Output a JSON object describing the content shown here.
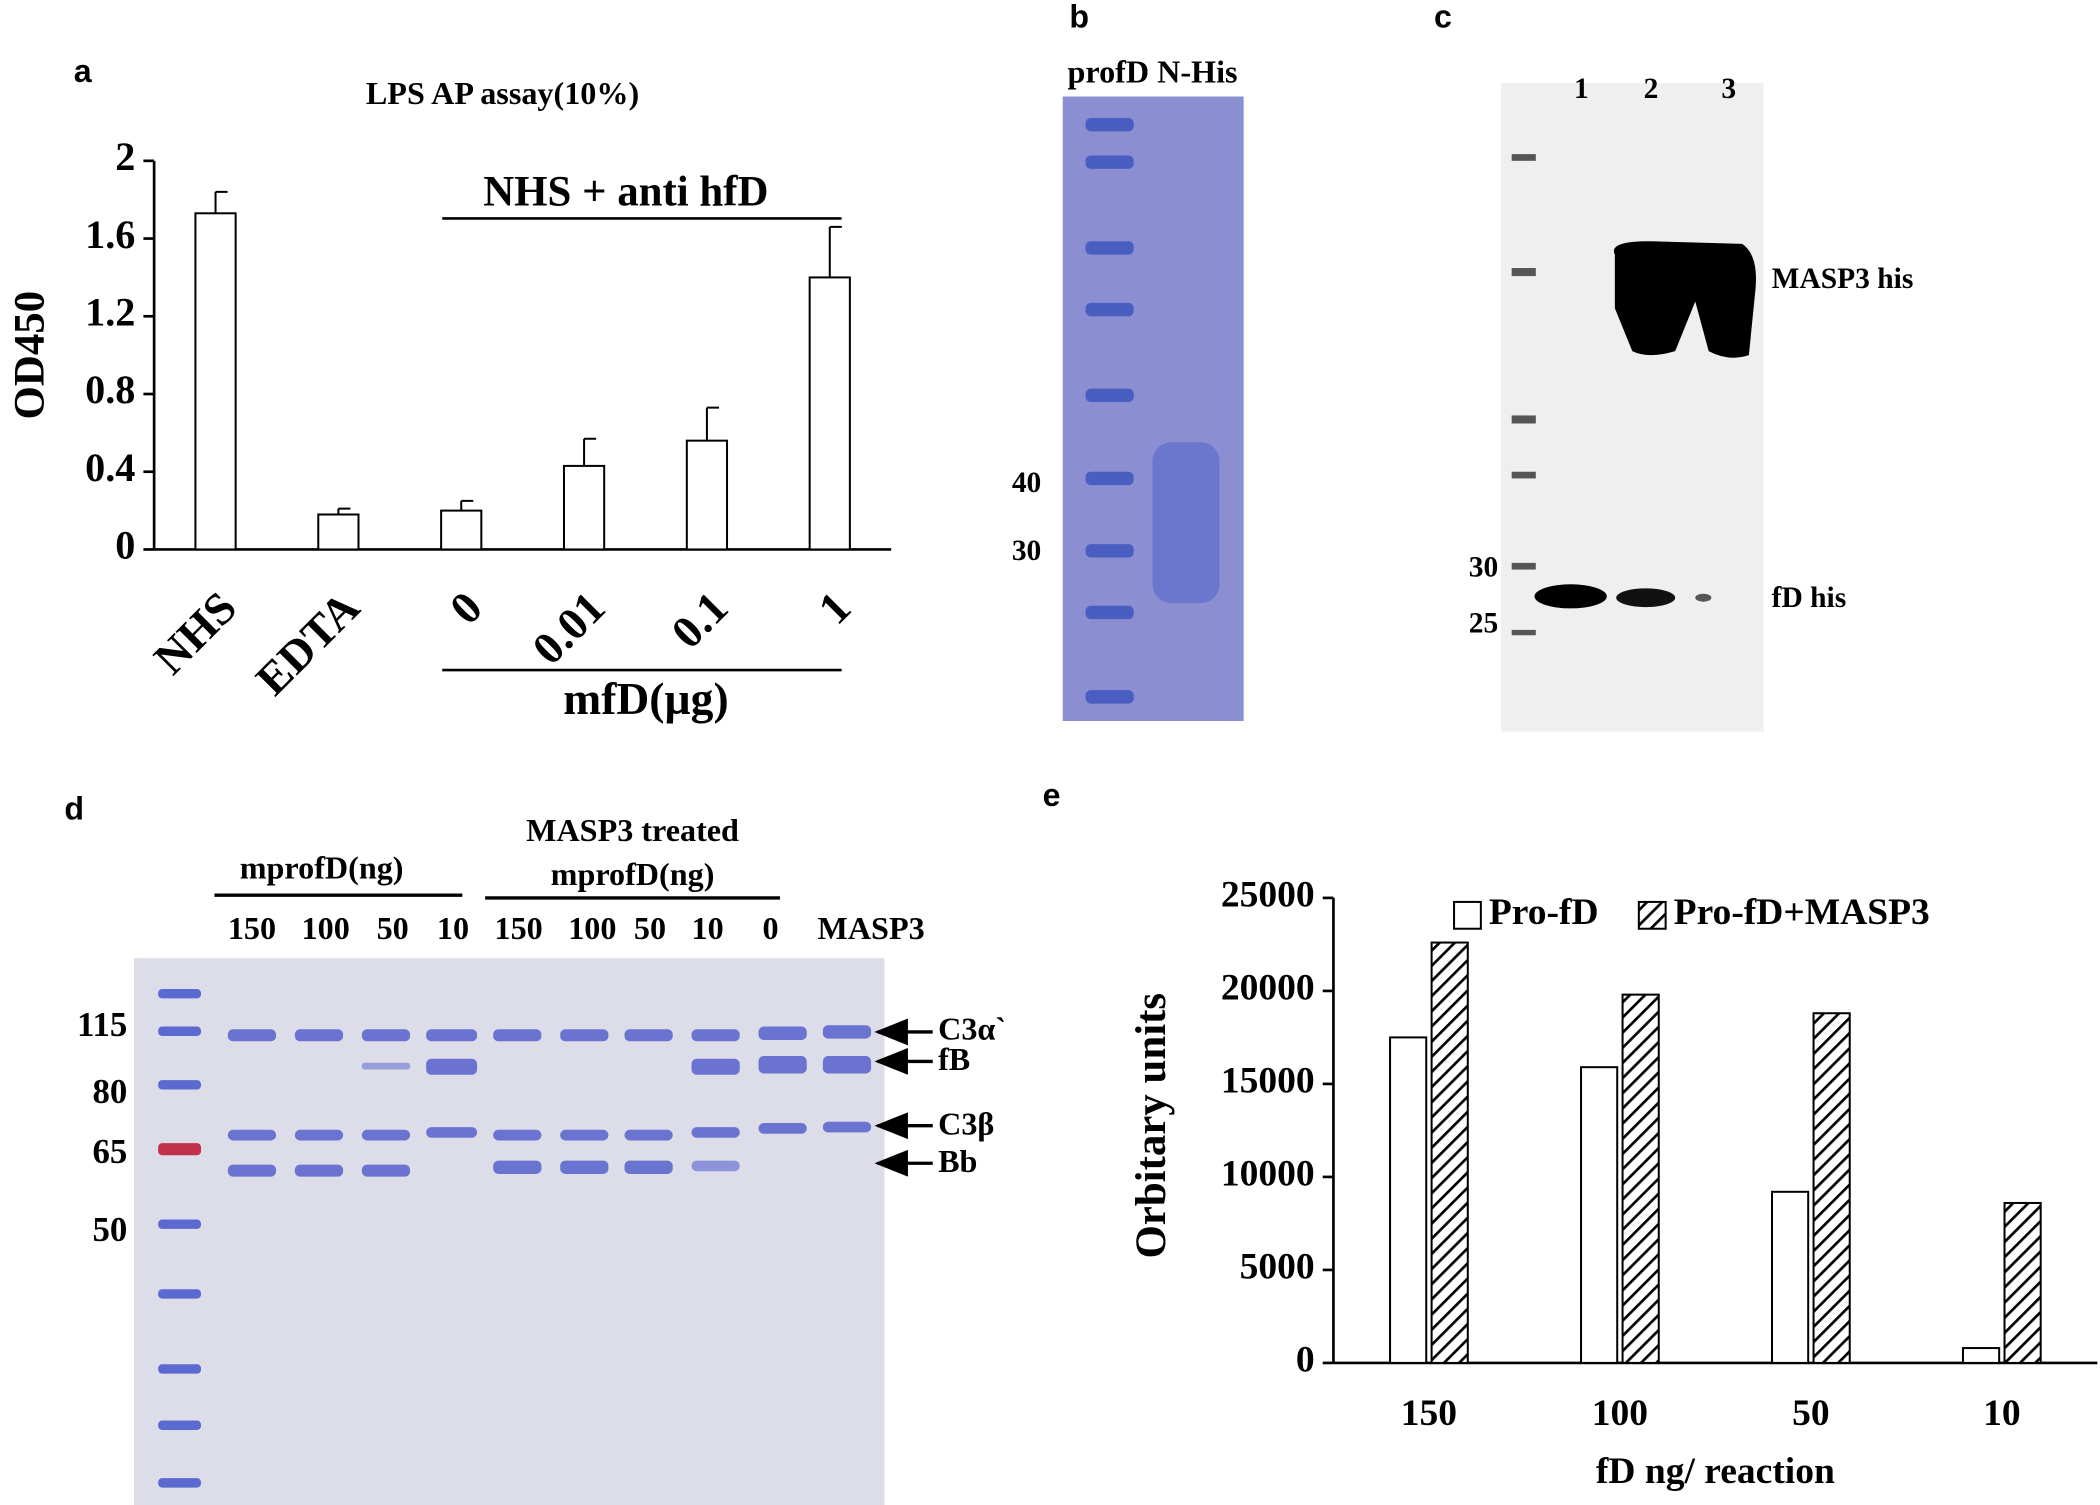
{
  "chart_data": [
    {
      "type": "bar",
      "panel": "a",
      "title": "LPS AP assay(10%)",
      "ylabel": "OD450",
      "categories": [
        "NHS",
        "EDTA",
        "0",
        "0.01",
        "0.1",
        "1"
      ],
      "values": [
        1.73,
        0.18,
        0.2,
        0.43,
        0.56,
        1.4
      ],
      "errors": [
        0.11,
        0.03,
        0.05,
        0.14,
        0.17,
        0.26
      ],
      "color": "#ffffff",
      "ylim": [
        0,
        2
      ],
      "yticks": [
        0,
        0.4,
        0.8,
        1.2,
        1.6,
        2
      ],
      "annotation": "NHS + anti hfD",
      "group_label": "mfD(µg)"
    },
    {
      "type": "bar",
      "panel": "e",
      "ylabel": "Orbitary units",
      "xlabel": "fD ng/ reaction",
      "categories": [
        "150",
        "100",
        "50",
        "10"
      ],
      "series": [
        {
          "name": "Pro-fD",
          "color": "#ffffff",
          "hatch": false,
          "values": [
            17500,
            15900,
            9200,
            800
          ]
        },
        {
          "name": "Pro-fD+MASP3",
          "color": "#ffffff",
          "hatch": true,
          "values": [
            22600,
            19800,
            18800,
            8600
          ]
        }
      ],
      "ylim": [
        0,
        25000
      ],
      "yticks": [
        0,
        5000,
        10000,
        15000,
        20000,
        25000
      ],
      "legend": "top"
    }
  ],
  "gels": [
    {
      "panel": "b",
      "header": "profD N-His",
      "markers": [
        "40",
        "30"
      ]
    },
    {
      "panel": "c",
      "lanes": [
        "1",
        "2",
        "3"
      ],
      "markers": [
        "30",
        "25"
      ],
      "bands": [
        "MASP3 his",
        "fD his"
      ]
    },
    {
      "panel": "d",
      "group_labels": [
        "mprofD(ng)",
        "MASP3 treated",
        "mprofD(ng)"
      ],
      "lanes": [
        "150",
        "100",
        "50",
        "10",
        "150",
        "100",
        "50",
        "10",
        "0",
        "MASP3"
      ],
      "markers": [
        "115",
        "80",
        "65",
        "50"
      ],
      "bands": [
        "C3α`",
        "fB",
        "C3β",
        "Bb"
      ]
    }
  ]
}
